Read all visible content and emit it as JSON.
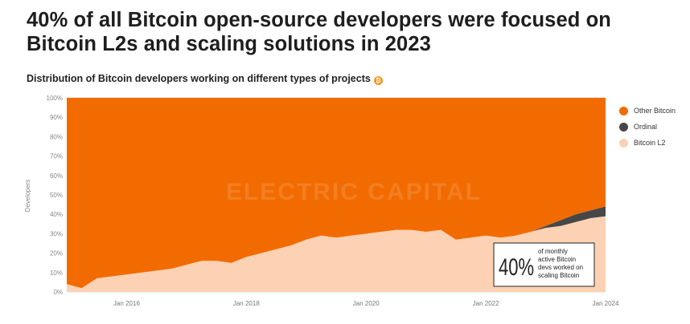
{
  "headline": "40% of all Bitcoin open-source developers were focused on Bitcoin L2s and scaling solutions in  2023",
  "subtitle": "Distribution of Bitcoin developers working on different types of projects",
  "coin_icon": "bitcoin-icon",
  "watermark": "ELECTRIC CAPITAL",
  "callout": {
    "big": "40%",
    "text": [
      "of monthly",
      "active Bitcoin",
      "devs worked on",
      "scaling Bitcoin"
    ]
  },
  "legend": [
    {
      "label": "Other Bitcoin",
      "color": "#f26b00"
    },
    {
      "label": "Ordinal",
      "color": "#474747"
    },
    {
      "label": "Bitcoin L2",
      "color": "#fdd1b3"
    }
  ],
  "chart_data": {
    "type": "area",
    "stacked": true,
    "normalized": true,
    "ylabel": "Developers",
    "xlabel": "",
    "ylim": [
      0,
      100
    ],
    "y_ticks": [
      "0%",
      "10%",
      "20%",
      "30%",
      "40%",
      "50%",
      "60%",
      "70%",
      "80%",
      "90%",
      "100%"
    ],
    "x_range": [
      "2015-01",
      "2024-01"
    ],
    "x_ticks": [
      "Jan 2016",
      "Jan 2018",
      "Jan 2020",
      "Jan 2022",
      "Jan 2024"
    ],
    "x": [
      "2015-01",
      "2015-04",
      "2015-07",
      "2015-10",
      "2016-01",
      "2016-04",
      "2016-07",
      "2016-10",
      "2017-01",
      "2017-04",
      "2017-07",
      "2017-10",
      "2018-01",
      "2018-04",
      "2018-07",
      "2018-10",
      "2019-01",
      "2019-04",
      "2019-07",
      "2019-10",
      "2020-01",
      "2020-04",
      "2020-07",
      "2020-10",
      "2021-01",
      "2021-04",
      "2021-07",
      "2021-10",
      "2022-01",
      "2022-04",
      "2022-07",
      "2022-10",
      "2023-01",
      "2023-04",
      "2023-07",
      "2023-10",
      "2024-01"
    ],
    "series": [
      {
        "name": "Bitcoin L2",
        "values": [
          4,
          2,
          7,
          8,
          9,
          10,
          11,
          12,
          14,
          16,
          16,
          15,
          18,
          20,
          22,
          24,
          27,
          29,
          28,
          29,
          30,
          31,
          32,
          32,
          31,
          32,
          27,
          28,
          29,
          28,
          29,
          31,
          33,
          34,
          36,
          38,
          39
        ]
      },
      {
        "name": "Ordinal",
        "values": [
          0,
          0,
          0,
          0,
          0,
          0,
          0,
          0,
          0,
          0,
          0,
          0,
          0,
          0,
          0,
          0,
          0,
          0,
          0,
          0,
          0,
          0,
          0,
          0,
          0,
          0,
          0,
          0,
          0,
          0,
          0,
          0,
          1,
          3,
          4,
          4,
          5
        ]
      },
      {
        "name": "Other Bitcoin",
        "values": [
          96,
          98,
          93,
          92,
          91,
          90,
          89,
          88,
          86,
          84,
          84,
          85,
          82,
          80,
          78,
          76,
          73,
          71,
          72,
          71,
          70,
          69,
          68,
          68,
          69,
          68,
          73,
          72,
          71,
          72,
          71,
          69,
          66,
          63,
          60,
          58,
          56
        ]
      }
    ]
  }
}
